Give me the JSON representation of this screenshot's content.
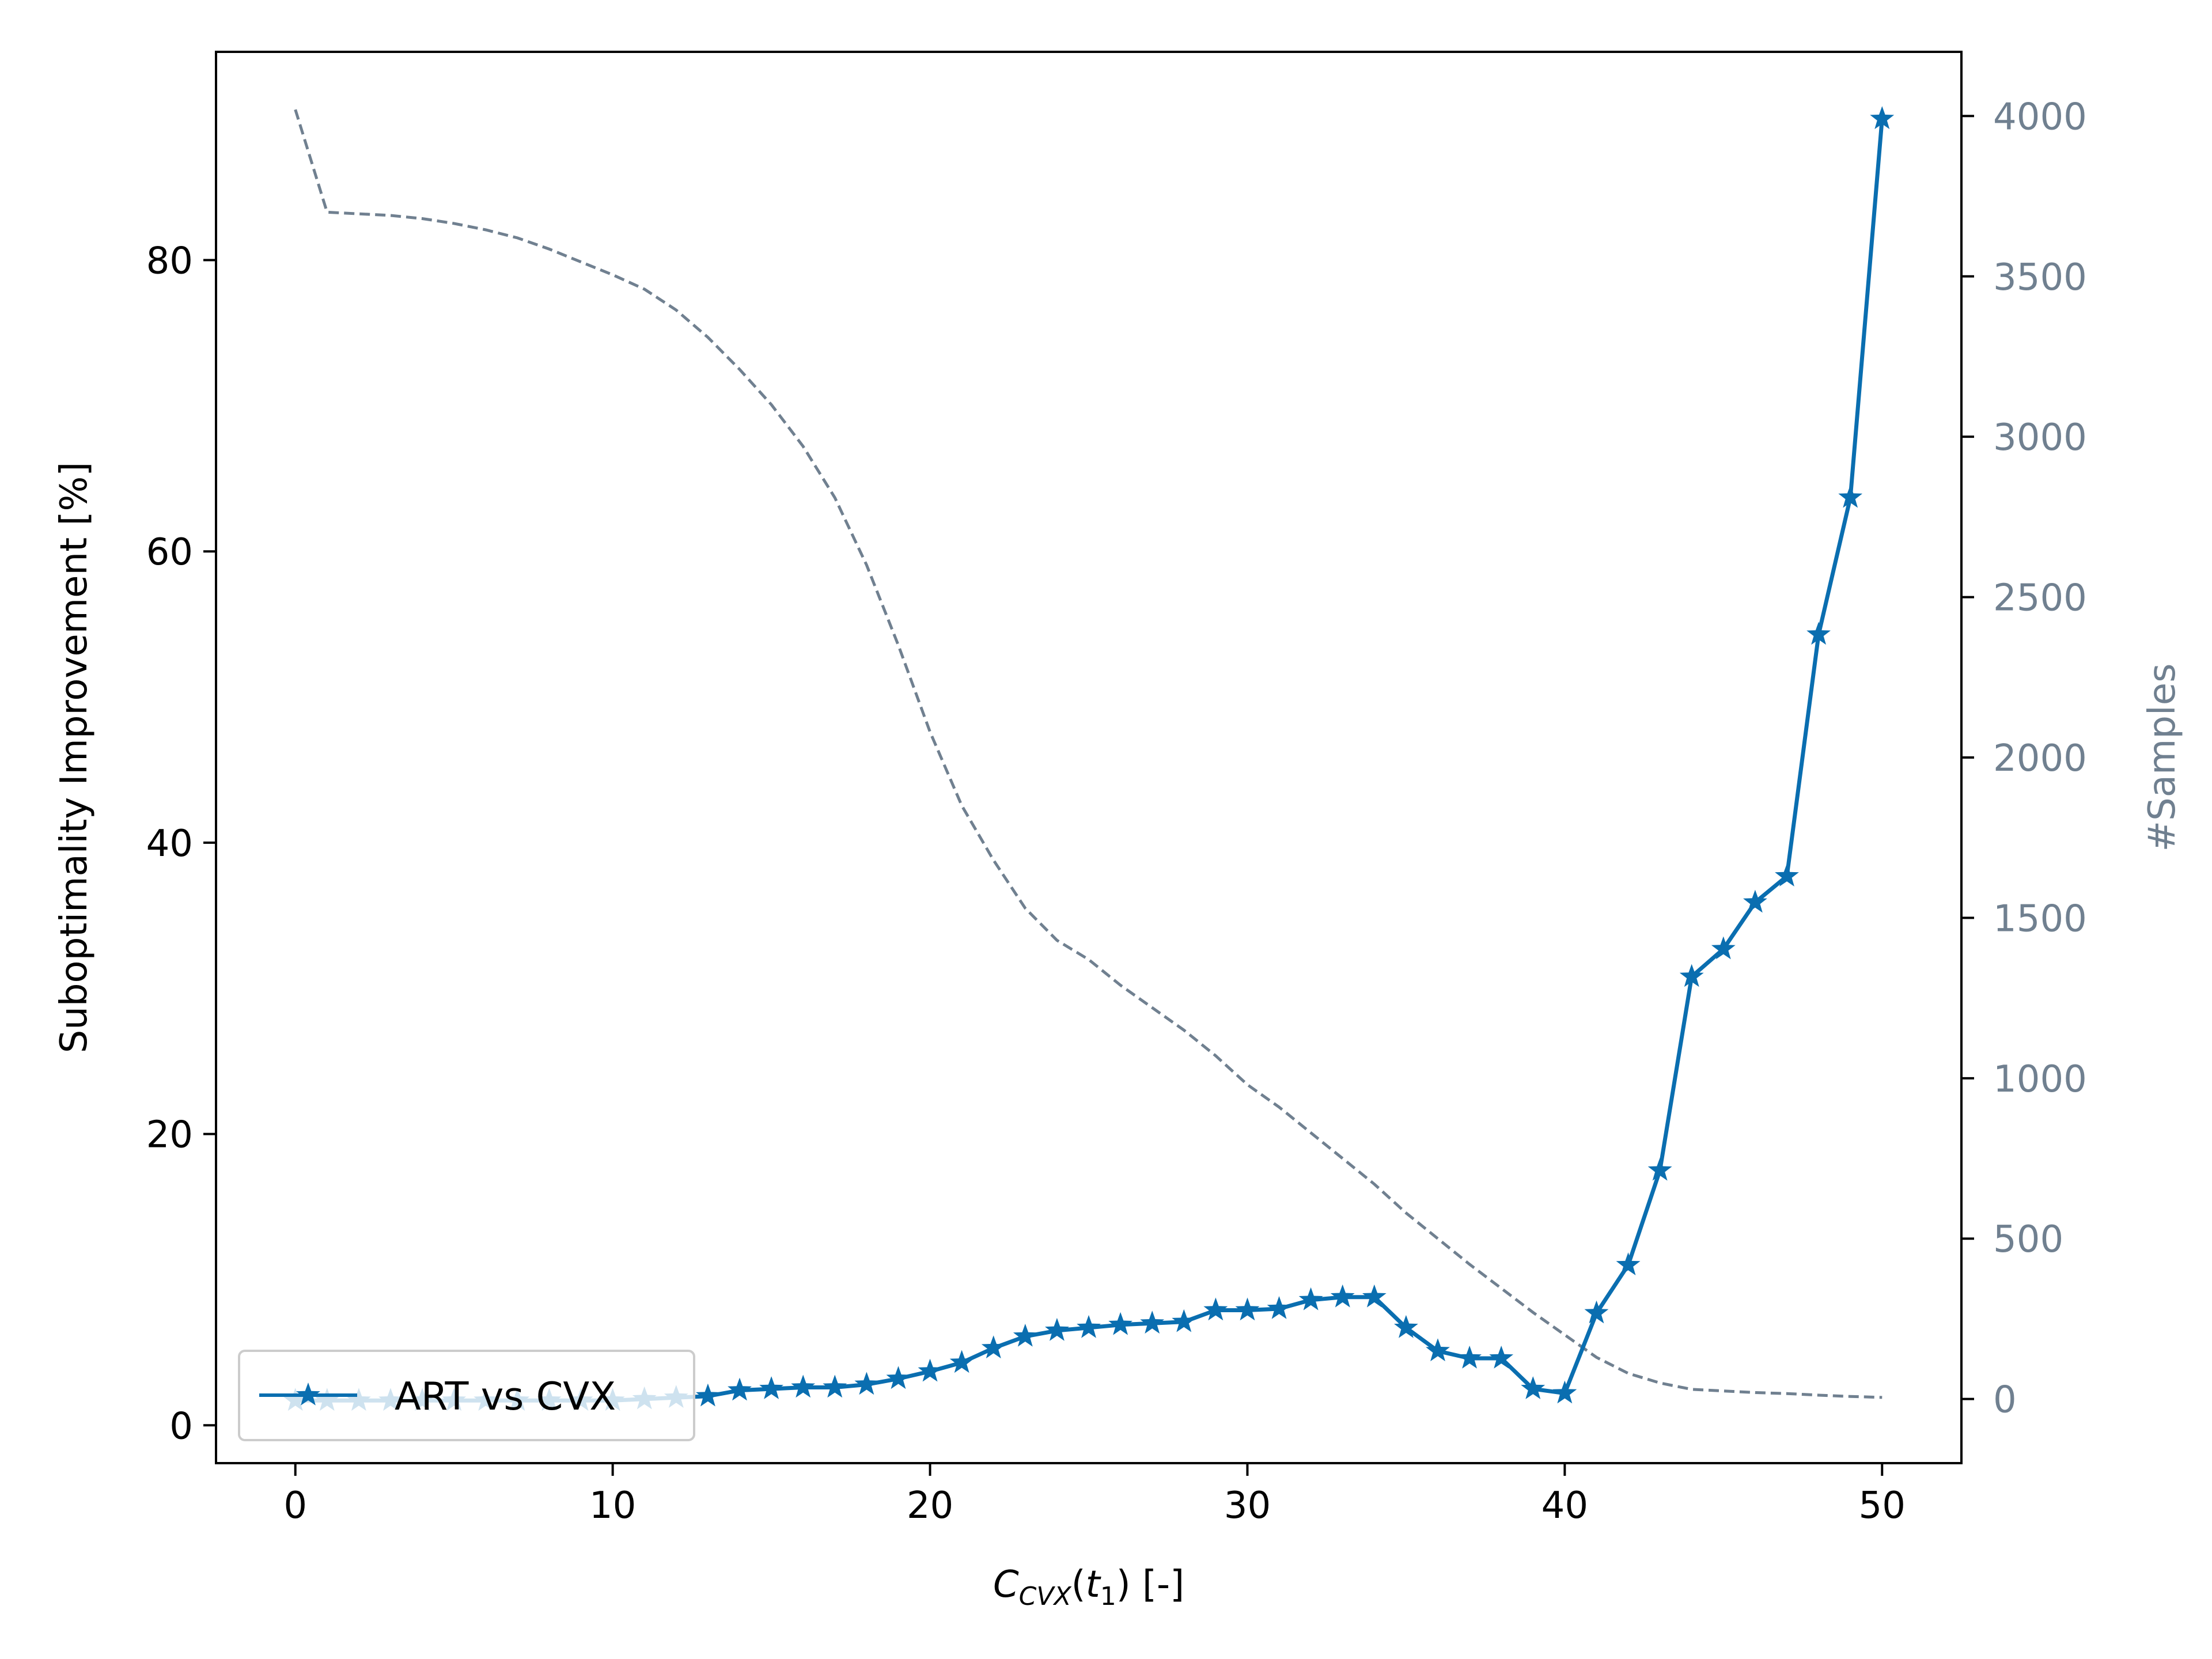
{
  "chart_data": {
    "type": "line",
    "x": [
      0,
      1,
      2,
      3,
      4,
      5,
      6,
      7,
      8,
      9,
      10,
      11,
      12,
      13,
      14,
      15,
      16,
      17,
      18,
      19,
      20,
      21,
      22,
      23,
      24,
      25,
      26,
      27,
      28,
      29,
      30,
      31,
      32,
      33,
      34,
      35,
      36,
      37,
      38,
      39,
      40,
      41,
      42,
      43,
      44,
      45,
      46,
      47,
      48,
      49,
      50
    ],
    "series": [
      {
        "name": "ART vs CVX",
        "axis": "left",
        "style": "solid-star-markers",
        "values": [
          1.7,
          1.7,
          1.7,
          1.7,
          1.7,
          1.7,
          1.7,
          1.7,
          1.7,
          1.7,
          1.7,
          1.8,
          1.9,
          2.0,
          2.4,
          2.5,
          2.6,
          2.6,
          2.8,
          3.2,
          3.7,
          4.3,
          5.3,
          6.1,
          6.5,
          6.7,
          6.9,
          7.0,
          7.1,
          7.9,
          7.9,
          8.0,
          8.6,
          8.8,
          8.8,
          6.7,
          5.1,
          4.6,
          4.6,
          2.5,
          2.2,
          7.7,
          11.0,
          17.5,
          30.8,
          32.7,
          35.9,
          37.7,
          54.3,
          63.7,
          89.7
        ]
      },
      {
        "axis": "right",
        "style": "dashed",
        "values": [
          4020,
          3700,
          3695,
          3690,
          3680,
          3665,
          3645,
          3620,
          3585,
          3545,
          3505,
          3460,
          3395,
          3310,
          3210,
          3100,
          2970,
          2810,
          2600,
          2350,
          2080,
          1850,
          1680,
          1530,
          1430,
          1370,
          1290,
          1220,
          1150,
          1070,
          980,
          910,
          830,
          750,
          670,
          580,
          500,
          420,
          345,
          270,
          200,
          130,
          80,
          50,
          30,
          25,
          20,
          17,
          12,
          8,
          5
        ]
      }
    ],
    "xlabel": "C",
    "xlabel_sub": "CVX",
    "xlabel_t": "t",
    "xlabel_t_sub": "1",
    "xlabel_unit": "[-]",
    "ylabel": "Suboptimality Improvement [%]",
    "ylabel_right": "#Samples",
    "xlim": [
      -2.5,
      52.5
    ],
    "ylim": [
      -2.6,
      94.3
    ],
    "ylim_right": [
      -200,
      4200
    ],
    "xticks": [
      "0",
      "10",
      "20",
      "30",
      "40",
      "50"
    ],
    "yticks": [
      "0",
      "20",
      "40",
      "60",
      "80"
    ],
    "yticks_right": [
      "0",
      "500",
      "1000",
      "1500",
      "2000",
      "2500",
      "3000",
      "3500",
      "4000"
    ],
    "legend_position": "lower-left",
    "grid": false,
    "colors": {
      "primary": "#0a6eb0",
      "secondary": "#708090",
      "axis": "#000000"
    }
  }
}
